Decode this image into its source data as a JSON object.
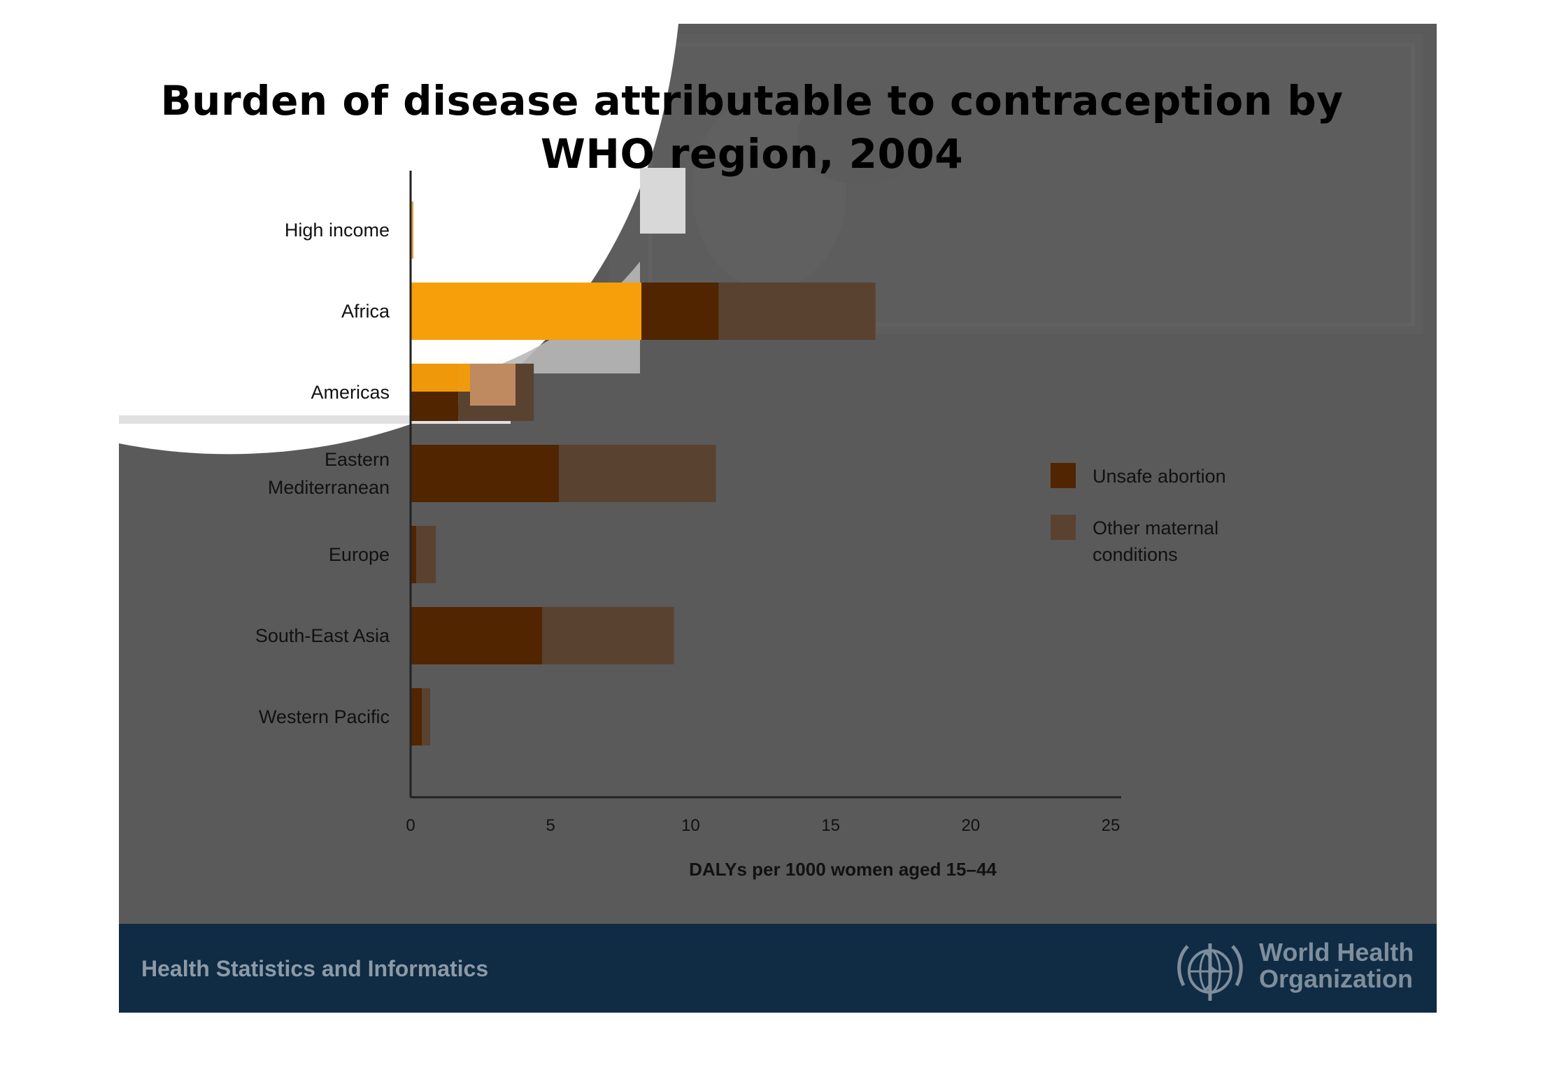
{
  "slide": {
    "title": "Burden of disease attributable to contraception by WHO region, 2004",
    "footer_text": "Health Statistics and Informatics",
    "org_name_line1": "World Health",
    "org_name_line2": "Organization"
  },
  "colors": {
    "slide_background": "#5a5a5a",
    "footer_background": "#0f2c44",
    "highlight_orange": "#ffa50b",
    "unsafe_abortion": "#502500",
    "other_maternal": "#5a4230"
  },
  "chart_data": {
    "type": "bar",
    "orientation": "horizontal",
    "stacked": true,
    "title": "",
    "xlabel": "DALYs per 1000 women aged 15–44",
    "ylabel": "",
    "xlim": [
      0,
      25
    ],
    "xticks": [
      0,
      5,
      10,
      15,
      20,
      25
    ],
    "categories": [
      "High income",
      "Africa",
      "Americas",
      "Eastern Mediterranean",
      "Europe",
      "South-East Asia",
      "Western Pacific"
    ],
    "category_label_lines": [
      [
        "High income"
      ],
      [
        "Africa"
      ],
      [
        "Americas"
      ],
      [
        "Eastern",
        "Mediterranean"
      ],
      [
        "Europe"
      ],
      [
        "South-East Asia"
      ],
      [
        "Western Pacific"
      ]
    ],
    "series": [
      {
        "name": "Unsafe abortion",
        "color": "#502500",
        "values": [
          0.05,
          11.0,
          1.7,
          5.3,
          0.2,
          4.7,
          0.4
        ]
      },
      {
        "name": "Other maternal conditions",
        "color": "#5a4230",
        "values": [
          0.02,
          5.6,
          2.7,
          5.6,
          0.7,
          4.7,
          0.3
        ]
      }
    ],
    "legend_labels": [
      [
        "Unsafe abortion"
      ],
      [
        "Other maternal",
        "conditions"
      ]
    ],
    "legend_position": "right",
    "grid": false
  }
}
